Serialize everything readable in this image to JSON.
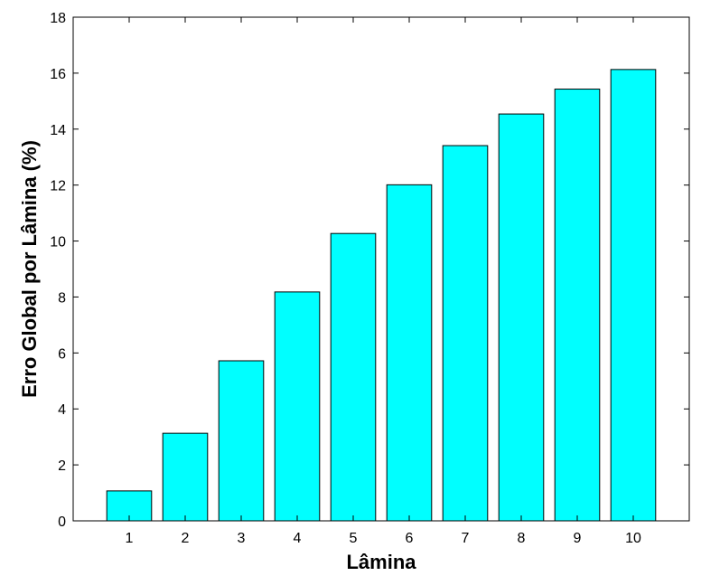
{
  "chart_data": {
    "type": "bar",
    "title": "",
    "xlabel": "Lâmina",
    "ylabel": "Erro Global por Lâmina (%)",
    "categories": [
      "1",
      "2",
      "3",
      "4",
      "5",
      "6",
      "7",
      "8",
      "9",
      "10"
    ],
    "values": [
      1.07,
      3.13,
      5.72,
      8.18,
      10.27,
      12.01,
      13.41,
      14.54,
      15.43,
      16.13
    ],
    "ylim": [
      0,
      18
    ],
    "yticks": [
      0,
      2,
      4,
      6,
      8,
      10,
      12,
      14,
      16,
      18
    ],
    "xlim": [
      0,
      11
    ],
    "grid": false,
    "legend": "none",
    "bar_color": "#00ffff",
    "edge_color": "#000000"
  }
}
